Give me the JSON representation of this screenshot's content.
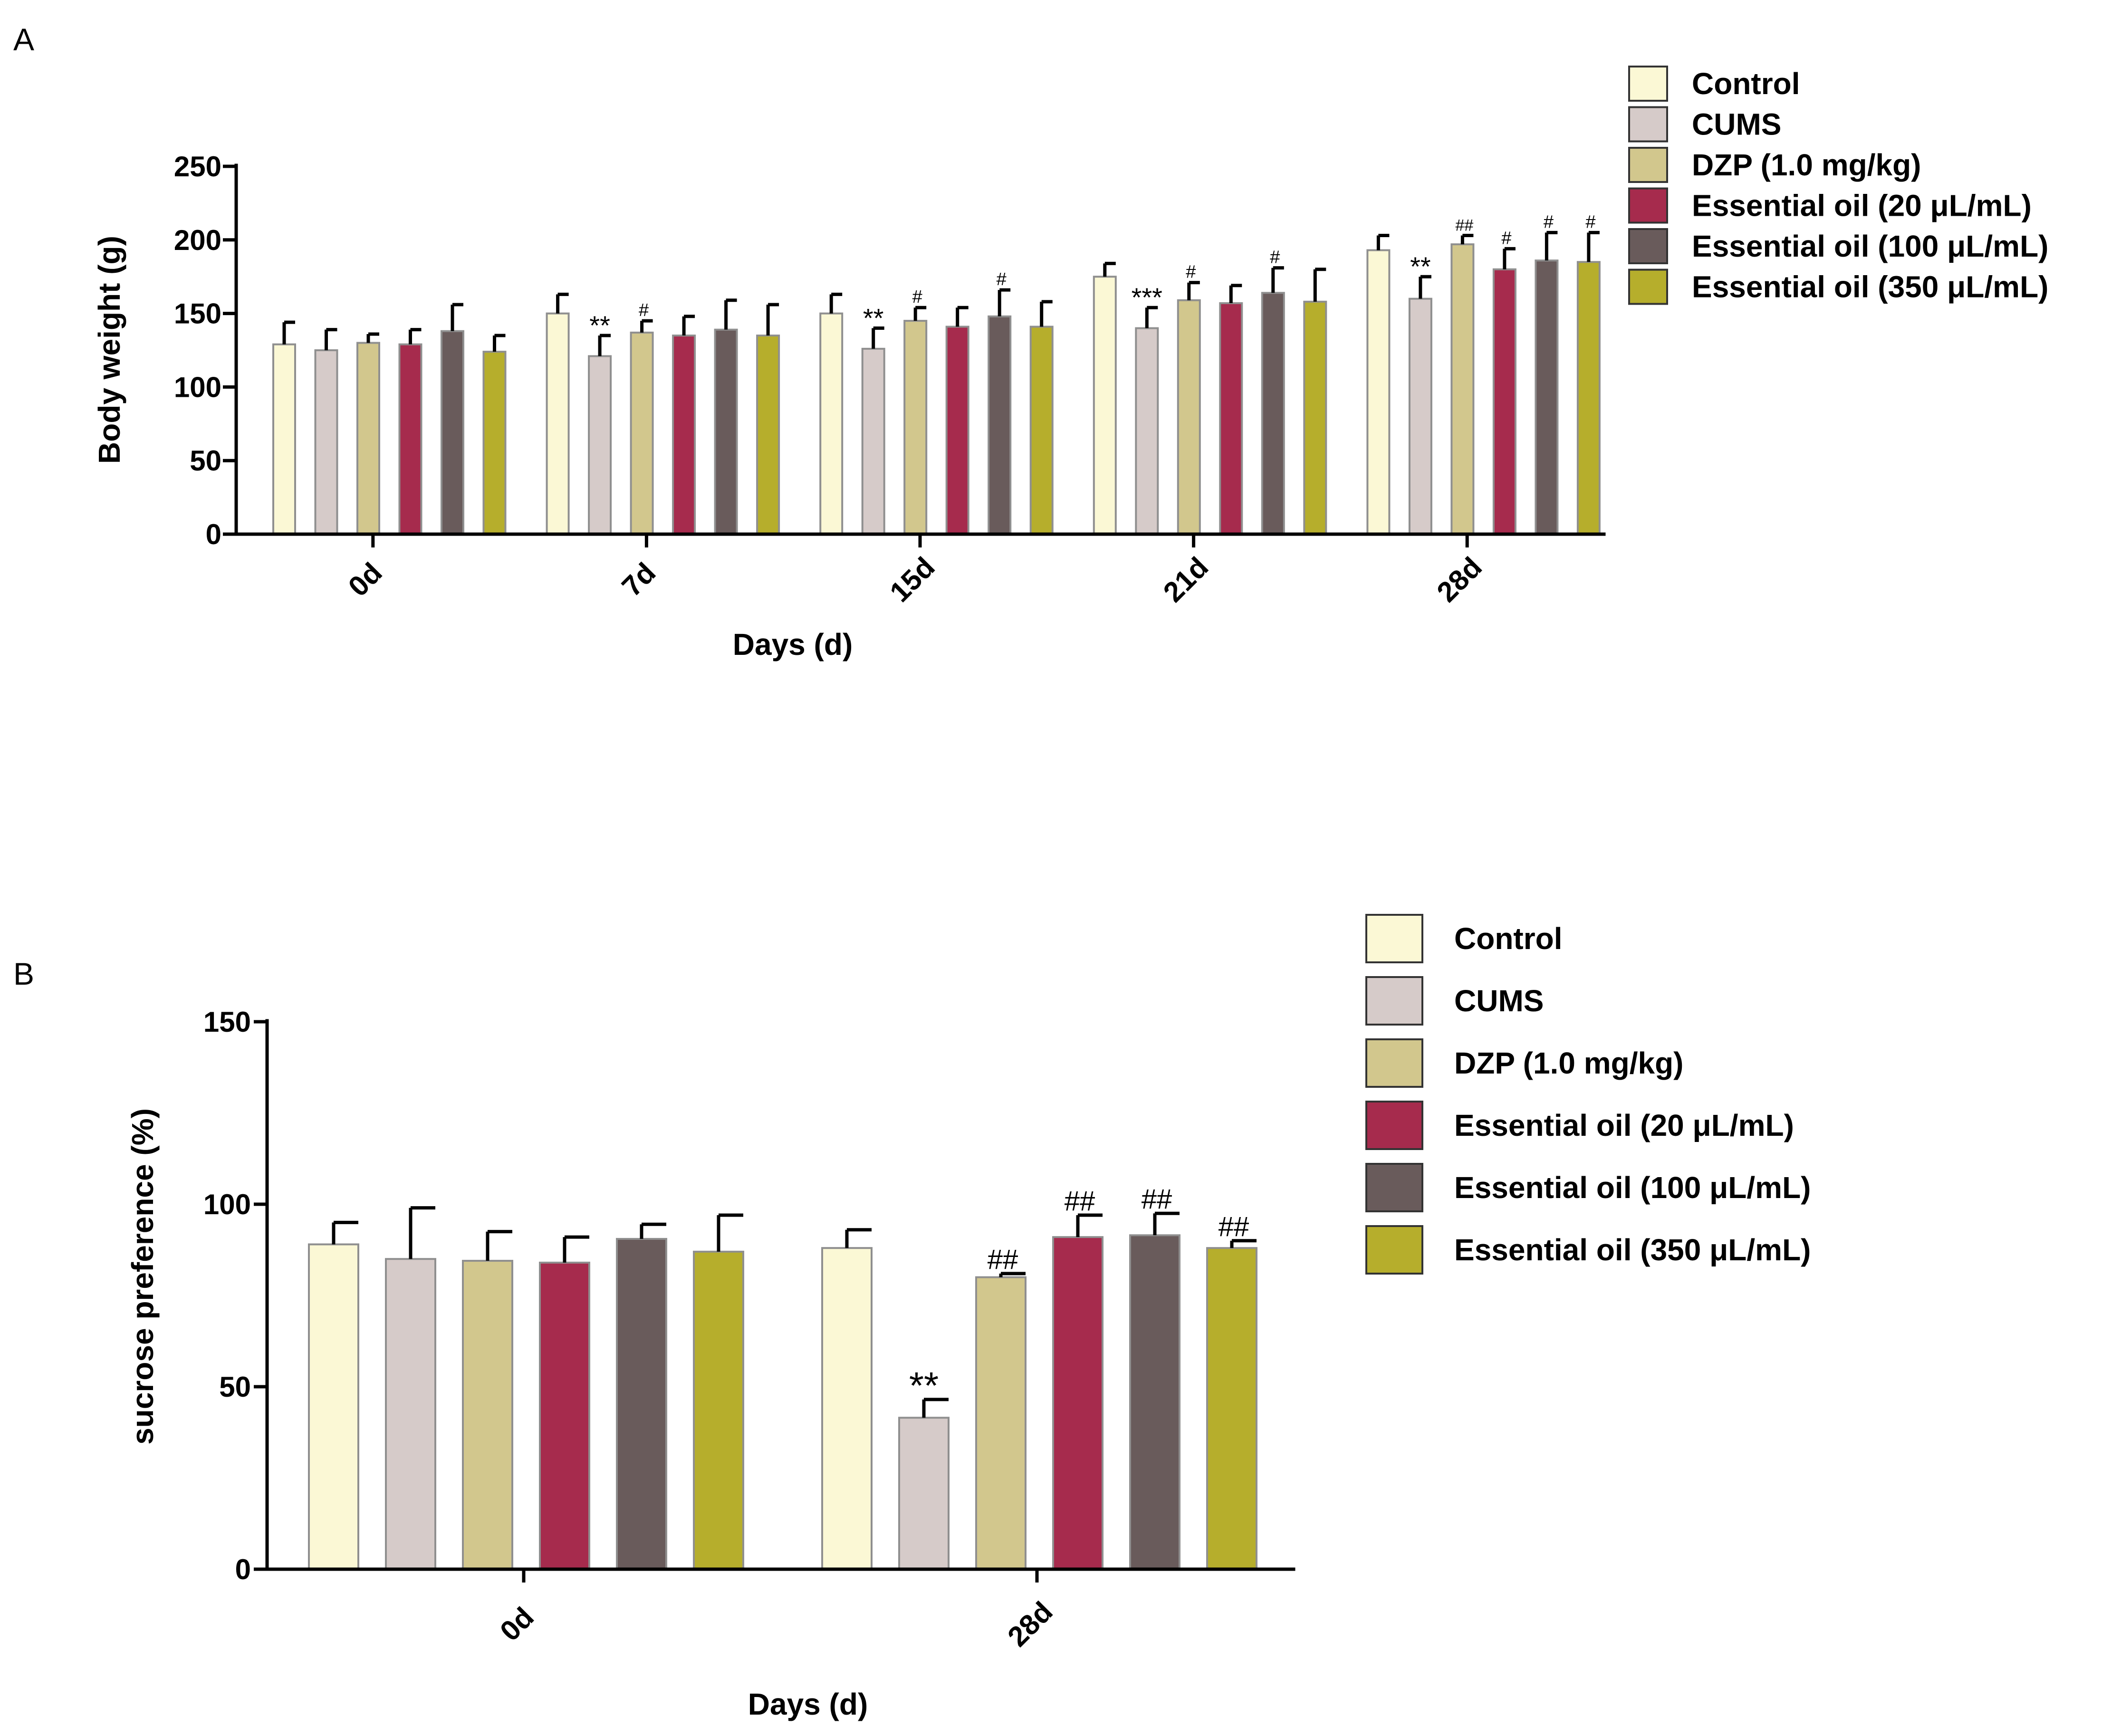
{
  "colors": {
    "Control": "#fbf8d5",
    "CUMS": "#d6cbc9",
    "DZP (1.0 mg/kg)": "#d2c78d",
    "Essential oil (20 μL/mL)": "#a62b4d",
    "Essential oil (100 μL/mL)": "#695b5b",
    "Essential oil (350 μL/mL)": "#b6ae2c"
  },
  "chart_data": [
    {
      "panel": "A",
      "type": "bar",
      "title": "",
      "xlabel": "Days (d)",
      "ylabel": "Body weight (g)",
      "ylim": [
        0,
        250
      ],
      "yticks": [
        "0",
        "50",
        "100",
        "150",
        "200",
        "250"
      ],
      "categories": [
        "0d",
        "7d",
        "15d",
        "21d",
        "28d"
      ],
      "legend": [
        "Control",
        "CUMS",
        "DZP (1.0 mg/kg)",
        "Essential oil (20 μL/mL)",
        "Essential oil (100 μL/mL)",
        "Essential oil (350 μL/mL)"
      ],
      "series": [
        {
          "name": "Control",
          "values": [
            129,
            150,
            150,
            175,
            193
          ],
          "errors": [
            15,
            13,
            13,
            9,
            10
          ],
          "annotations": [
            "",
            "",
            "",
            "",
            ""
          ]
        },
        {
          "name": "CUMS",
          "values": [
            125,
            121,
            126,
            140,
            160
          ],
          "errors": [
            14,
            14,
            14,
            14,
            15
          ],
          "annotations": [
            "",
            "**",
            "**",
            "***",
            "**"
          ]
        },
        {
          "name": "DZP (1.0 mg/kg)",
          "values": [
            130,
            137,
            145,
            159,
            197
          ],
          "errors": [
            6,
            8,
            9,
            12,
            6
          ],
          "annotations": [
            "",
            "#",
            "#",
            "#",
            "##"
          ]
        },
        {
          "name": "Essential oil (20 μL/mL)",
          "values": [
            129,
            135,
            141,
            157,
            180
          ],
          "errors": [
            10,
            13,
            13,
            12,
            14
          ],
          "annotations": [
            "",
            "",
            "",
            "",
            "#"
          ]
        },
        {
          "name": "Essential oil (100 μL/mL)",
          "values": [
            138,
            139,
            148,
            164,
            186
          ],
          "errors": [
            18,
            20,
            18,
            17,
            19
          ],
          "annotations": [
            "",
            "",
            "#",
            "#",
            "#"
          ]
        },
        {
          "name": "Essential oil (350 μL/mL)",
          "values": [
            124,
            135,
            141,
            158,
            185
          ],
          "errors": [
            11,
            21,
            17,
            22,
            20
          ],
          "annotations": [
            "",
            "",
            "",
            "",
            "#"
          ]
        }
      ]
    },
    {
      "panel": "B",
      "type": "bar",
      "title": "",
      "xlabel": "Days (d)",
      "ylabel": "sucrose preference (%)",
      "ylim": [
        0,
        150
      ],
      "yticks": [
        "0",
        "50",
        "100",
        "150"
      ],
      "categories": [
        "0d",
        "28d"
      ],
      "legend": [
        "Control",
        "CUMS",
        "DZP (1.0 mg/kg)",
        "Essential oil (20 μL/mL)",
        "Essential oil (100 μL/mL)",
        "Essential oil (350 μL/mL)"
      ],
      "series": [
        {
          "name": "Control",
          "values": [
            89,
            88
          ],
          "errors": [
            6,
            5
          ],
          "annotations": [
            "",
            ""
          ]
        },
        {
          "name": "CUMS",
          "values": [
            85,
            41.5
          ],
          "errors": [
            14,
            5
          ],
          "annotations": [
            "",
            "**"
          ]
        },
        {
          "name": "DZP (1.0 mg/kg)",
          "values": [
            84.5,
            80
          ],
          "errors": [
            8,
            1
          ],
          "annotations": [
            "",
            "##"
          ]
        },
        {
          "name": "Essential oil (20 μL/mL)",
          "values": [
            84,
            91
          ],
          "errors": [
            7,
            6
          ],
          "annotations": [
            "",
            "##"
          ]
        },
        {
          "name": "Essential oil (100 μL/mL)",
          "values": [
            90.5,
            91.5
          ],
          "errors": [
            4,
            6
          ],
          "annotations": [
            "",
            "##"
          ]
        },
        {
          "name": "Essential oil (350 μL/mL)",
          "values": [
            87,
            88
          ],
          "errors": [
            10,
            2
          ],
          "annotations": [
            "",
            "##"
          ]
        }
      ]
    }
  ]
}
